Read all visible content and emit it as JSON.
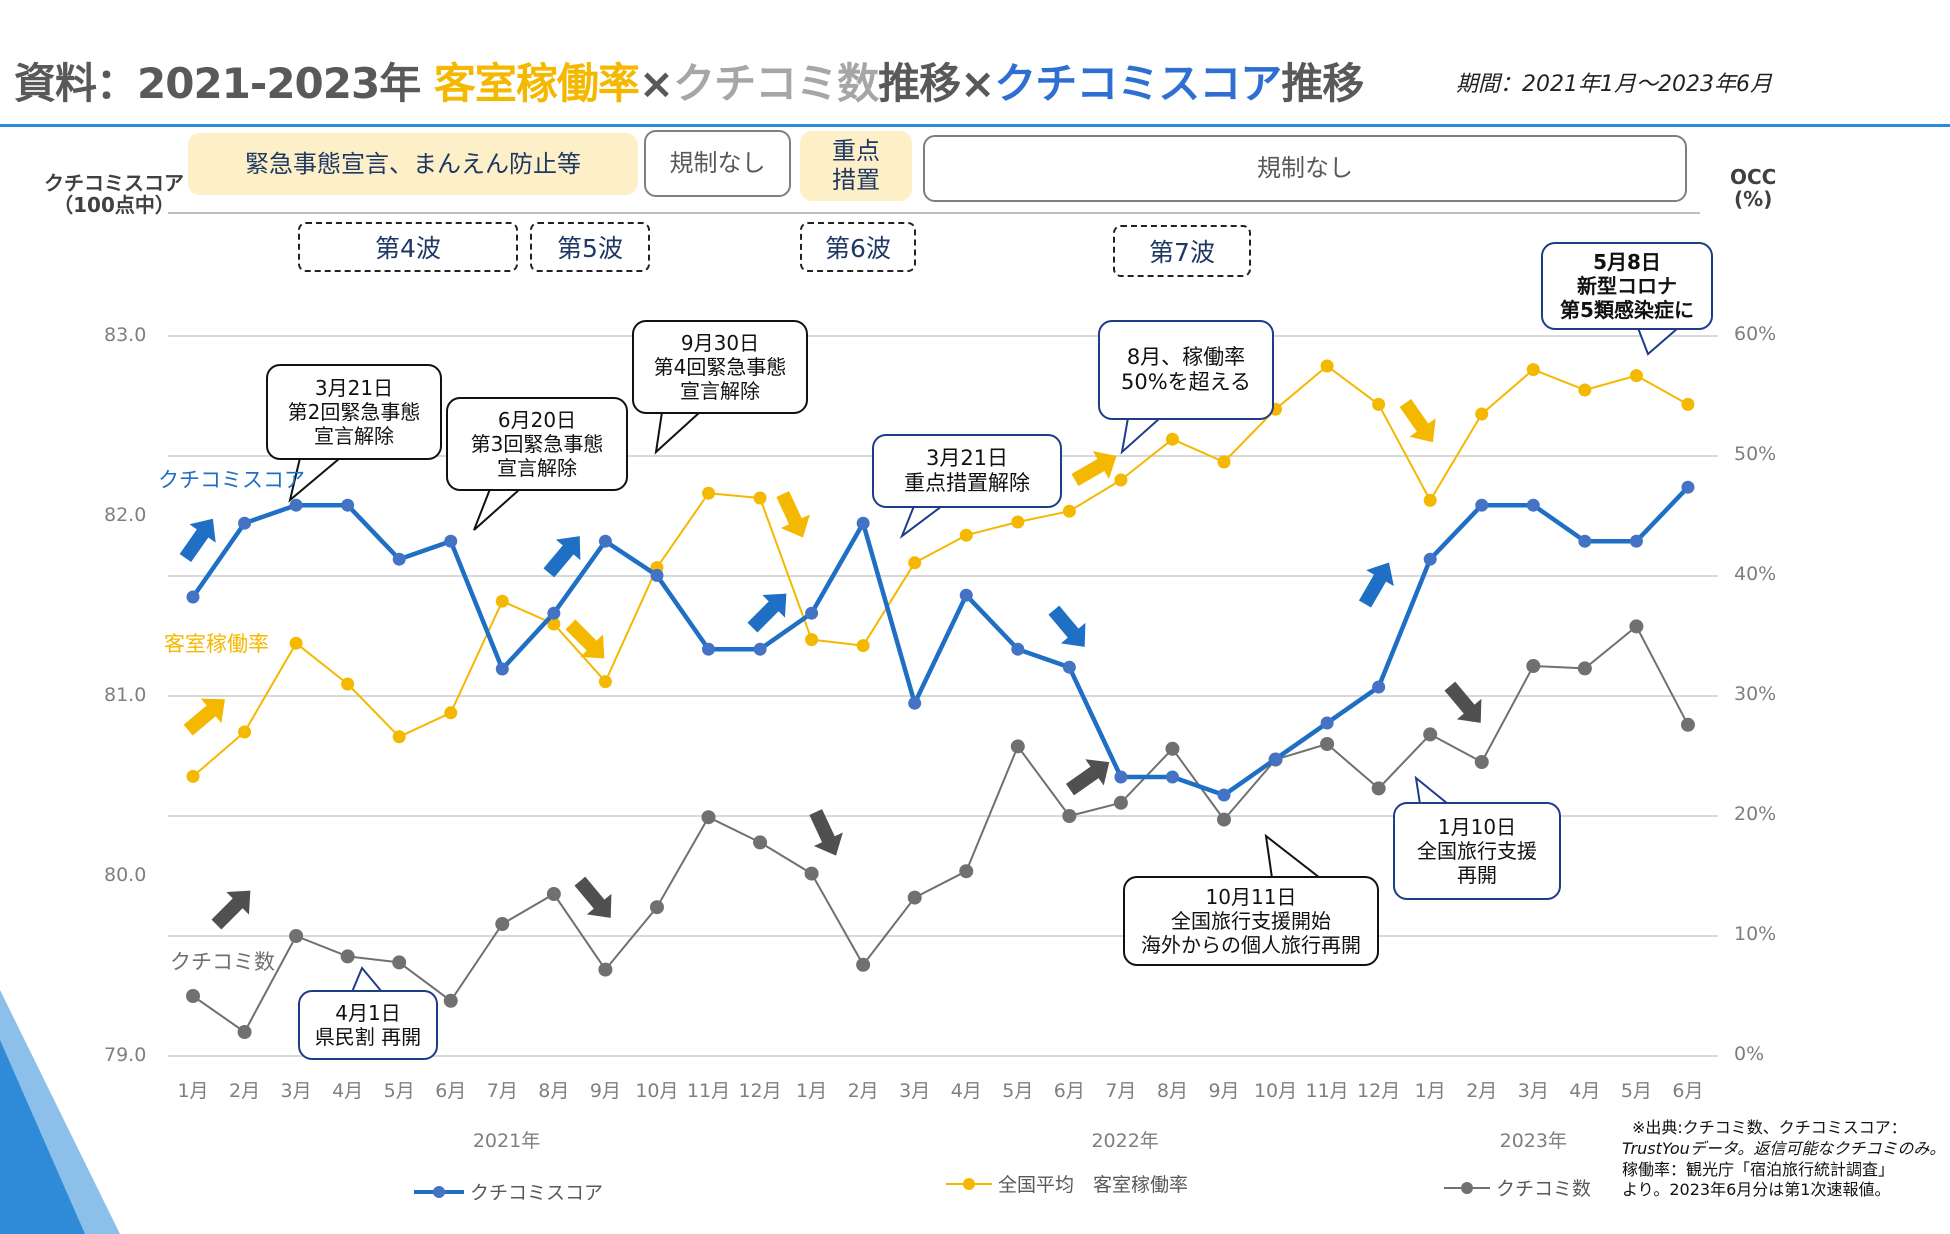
{
  "header": {
    "title_prefix": "資料：2021-2023年 ",
    "title_part1": "客室稼働率",
    "title_sep1": "×",
    "title_part2": "クチコミ数",
    "title_mid": "推移×",
    "title_part3": "クチコミスコア",
    "title_suffix": "推移",
    "period": "期間：2021年1月～2023年6月"
  },
  "colors": {
    "score": "#1f6fc5",
    "occupancy": "#f5b800",
    "reviews": "#707070",
    "accent_line": "#2e8bd6"
  },
  "regulation_bands": [
    {
      "label": "緊急事態宣言、まんえん防止等",
      "style": "fill"
    },
    {
      "label": "規制なし",
      "style": "outline"
    },
    {
      "label": "重点\n措置",
      "style": "fill"
    },
    {
      "label": "規制なし",
      "style": "outline"
    }
  ],
  "waves": [
    "第4波",
    "第5波",
    "第6波",
    "第7波"
  ],
  "axes": {
    "left_title": "クチコミスコア\n（100点中）",
    "right_title": "OCC\n(%)"
  },
  "series_labels": {
    "score": "クチコミスコア",
    "occupancy": "客室稼働率",
    "reviews": "クチコミ数"
  },
  "callouts": [
    {
      "text": "3月21日\n第2回緊急事態\n宣言解除"
    },
    {
      "text": "6月20日\n第3回緊急事態\n宣言解除"
    },
    {
      "text": "9月30日\n第4回緊急事態\n宣言解除"
    },
    {
      "text": "3月21日\n重点措置解除"
    },
    {
      "text": "8月、稼働率\n50%を超える"
    },
    {
      "text": "5月8日\n新型コロナ\n第5類感染症に"
    },
    {
      "text": "4月1日\n県民割 再開"
    },
    {
      "text": "10月11日\n全国旅行支援開始\n海外からの個人旅行再開"
    },
    {
      "text": "1月10日\n全国旅行支援\n再開"
    }
  ],
  "legend": {
    "score": "クチコミスコア",
    "occupancy": "全国平均　客室稼働率",
    "reviews": "クチコミ数"
  },
  "footnote": {
    "line1": "※出典:クチコミ数、クチコミスコア：",
    "line2": "TrustYouデータ。返信可能なクチコミのみ。",
    "line3": "稼働率：観光庁「宿泊旅行統計調査」",
    "line4": "より。2023年6月分は第1次速報値。"
  },
  "chart_data": {
    "type": "line",
    "title": "2021-2023年 客室稼働率×クチコミ数推移×クチコミスコア推移",
    "x": [
      "1月",
      "2月",
      "3月",
      "4月",
      "5月",
      "6月",
      "7月",
      "8月",
      "9月",
      "10月",
      "11月",
      "12月",
      "1月",
      "2月",
      "3月",
      "4月",
      "5月",
      "6月",
      "7月",
      "8月",
      "9月",
      "10月",
      "11月",
      "12月",
      "1月",
      "2月",
      "3月",
      "4月",
      "5月",
      "6月"
    ],
    "year_groups": [
      {
        "label": "2021年",
        "months": 12
      },
      {
        "label": "2022年",
        "months": 12
      },
      {
        "label": "2023年",
        "months": 6
      }
    ],
    "left_axis": {
      "label": "クチコミスコア（100点中）",
      "ylim": [
        79.0,
        83.0
      ],
      "ticks": [
        "83.0",
        "82.0",
        "81.0",
        "80.0",
        "79.0"
      ]
    },
    "right_axis": {
      "label": "OCC (%)",
      "ylim": [
        0,
        60
      ],
      "ticks": [
        "60%",
        "50%",
        "40%",
        "30%",
        "20%",
        "10%",
        "0%"
      ]
    },
    "grid": true,
    "legend_position": "bottom",
    "series": [
      {
        "name": "クチコミスコア",
        "axis": "left",
        "values": [
          81.55,
          81.96,
          82.06,
          82.06,
          81.76,
          81.86,
          81.15,
          81.46,
          81.86,
          81.67,
          81.26,
          81.26,
          81.46,
          81.96,
          80.96,
          81.56,
          81.26,
          81.16,
          80.55,
          80.55,
          80.45,
          80.65,
          80.85,
          81.05,
          81.76,
          82.06,
          82.06,
          81.86,
          81.86,
          82.16
        ]
      },
      {
        "name": "全国平均 客室稼働率",
        "axis": "right",
        "values": [
          23.3,
          27.0,
          34.4,
          31.0,
          26.6,
          28.6,
          37.9,
          36.0,
          31.2,
          40.7,
          46.9,
          46.5,
          34.7,
          34.2,
          41.1,
          43.4,
          44.5,
          45.4,
          48.0,
          51.4,
          49.5,
          53.9,
          57.5,
          54.3,
          46.3,
          53.5,
          57.2,
          55.5,
          56.7,
          54.3
        ]
      },
      {
        "name": "クチコミ数",
        "axis": "right_index",
        "values": [
          5.0,
          2.0,
          10.0,
          8.3,
          7.8,
          4.6,
          11.0,
          13.5,
          7.2,
          12.4,
          19.9,
          17.8,
          15.2,
          7.6,
          13.2,
          15.4,
          25.8,
          20.0,
          21.1,
          25.6,
          19.7,
          24.7,
          26.0,
          22.3,
          26.8,
          24.5,
          32.5,
          32.3,
          35.8,
          27.6
        ]
      }
    ]
  }
}
